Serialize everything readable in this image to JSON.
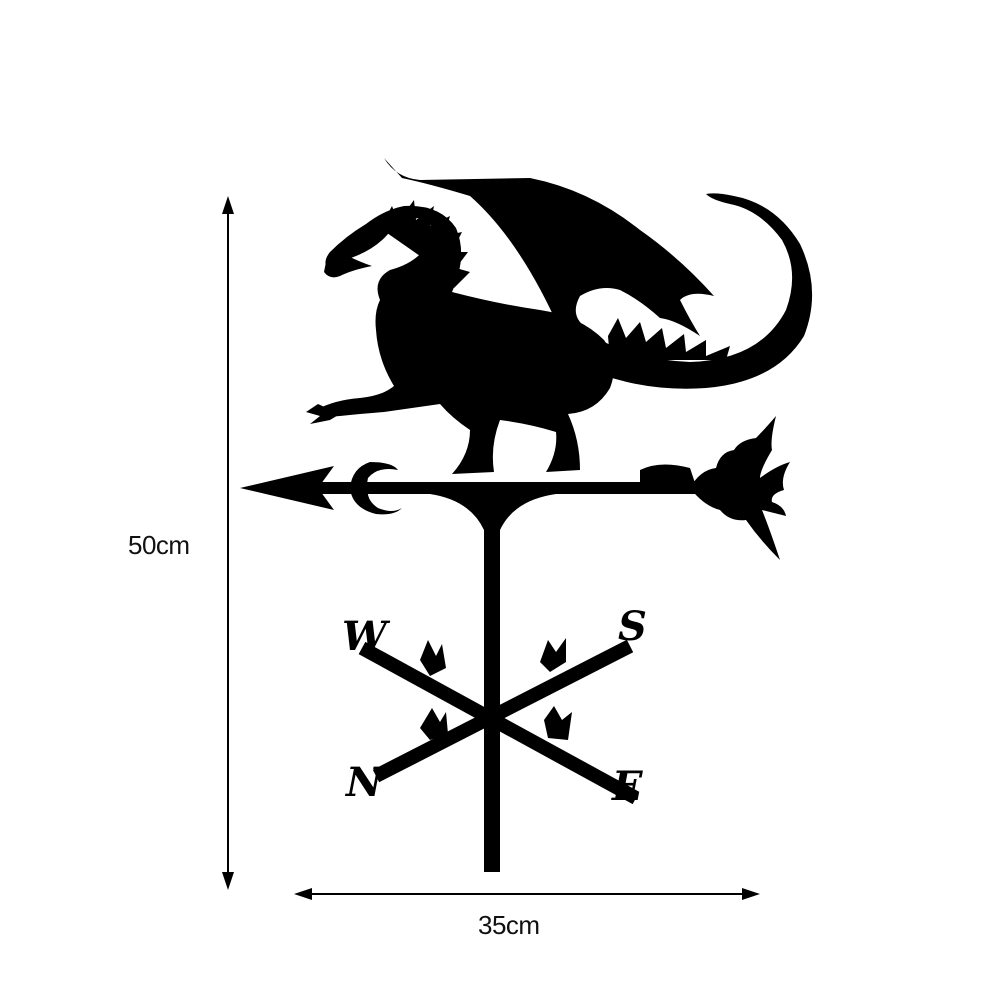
{
  "dimensions": {
    "height_label": "50cm",
    "width_label": "35cm"
  },
  "compass": {
    "west": "W",
    "south": "S",
    "north": "N",
    "east": "E"
  },
  "colors": {
    "silhouette": "#000000",
    "background": "#ffffff",
    "dimension_line": "#000000"
  },
  "icons": {
    "main": "dragon-weathervane-icon"
  }
}
